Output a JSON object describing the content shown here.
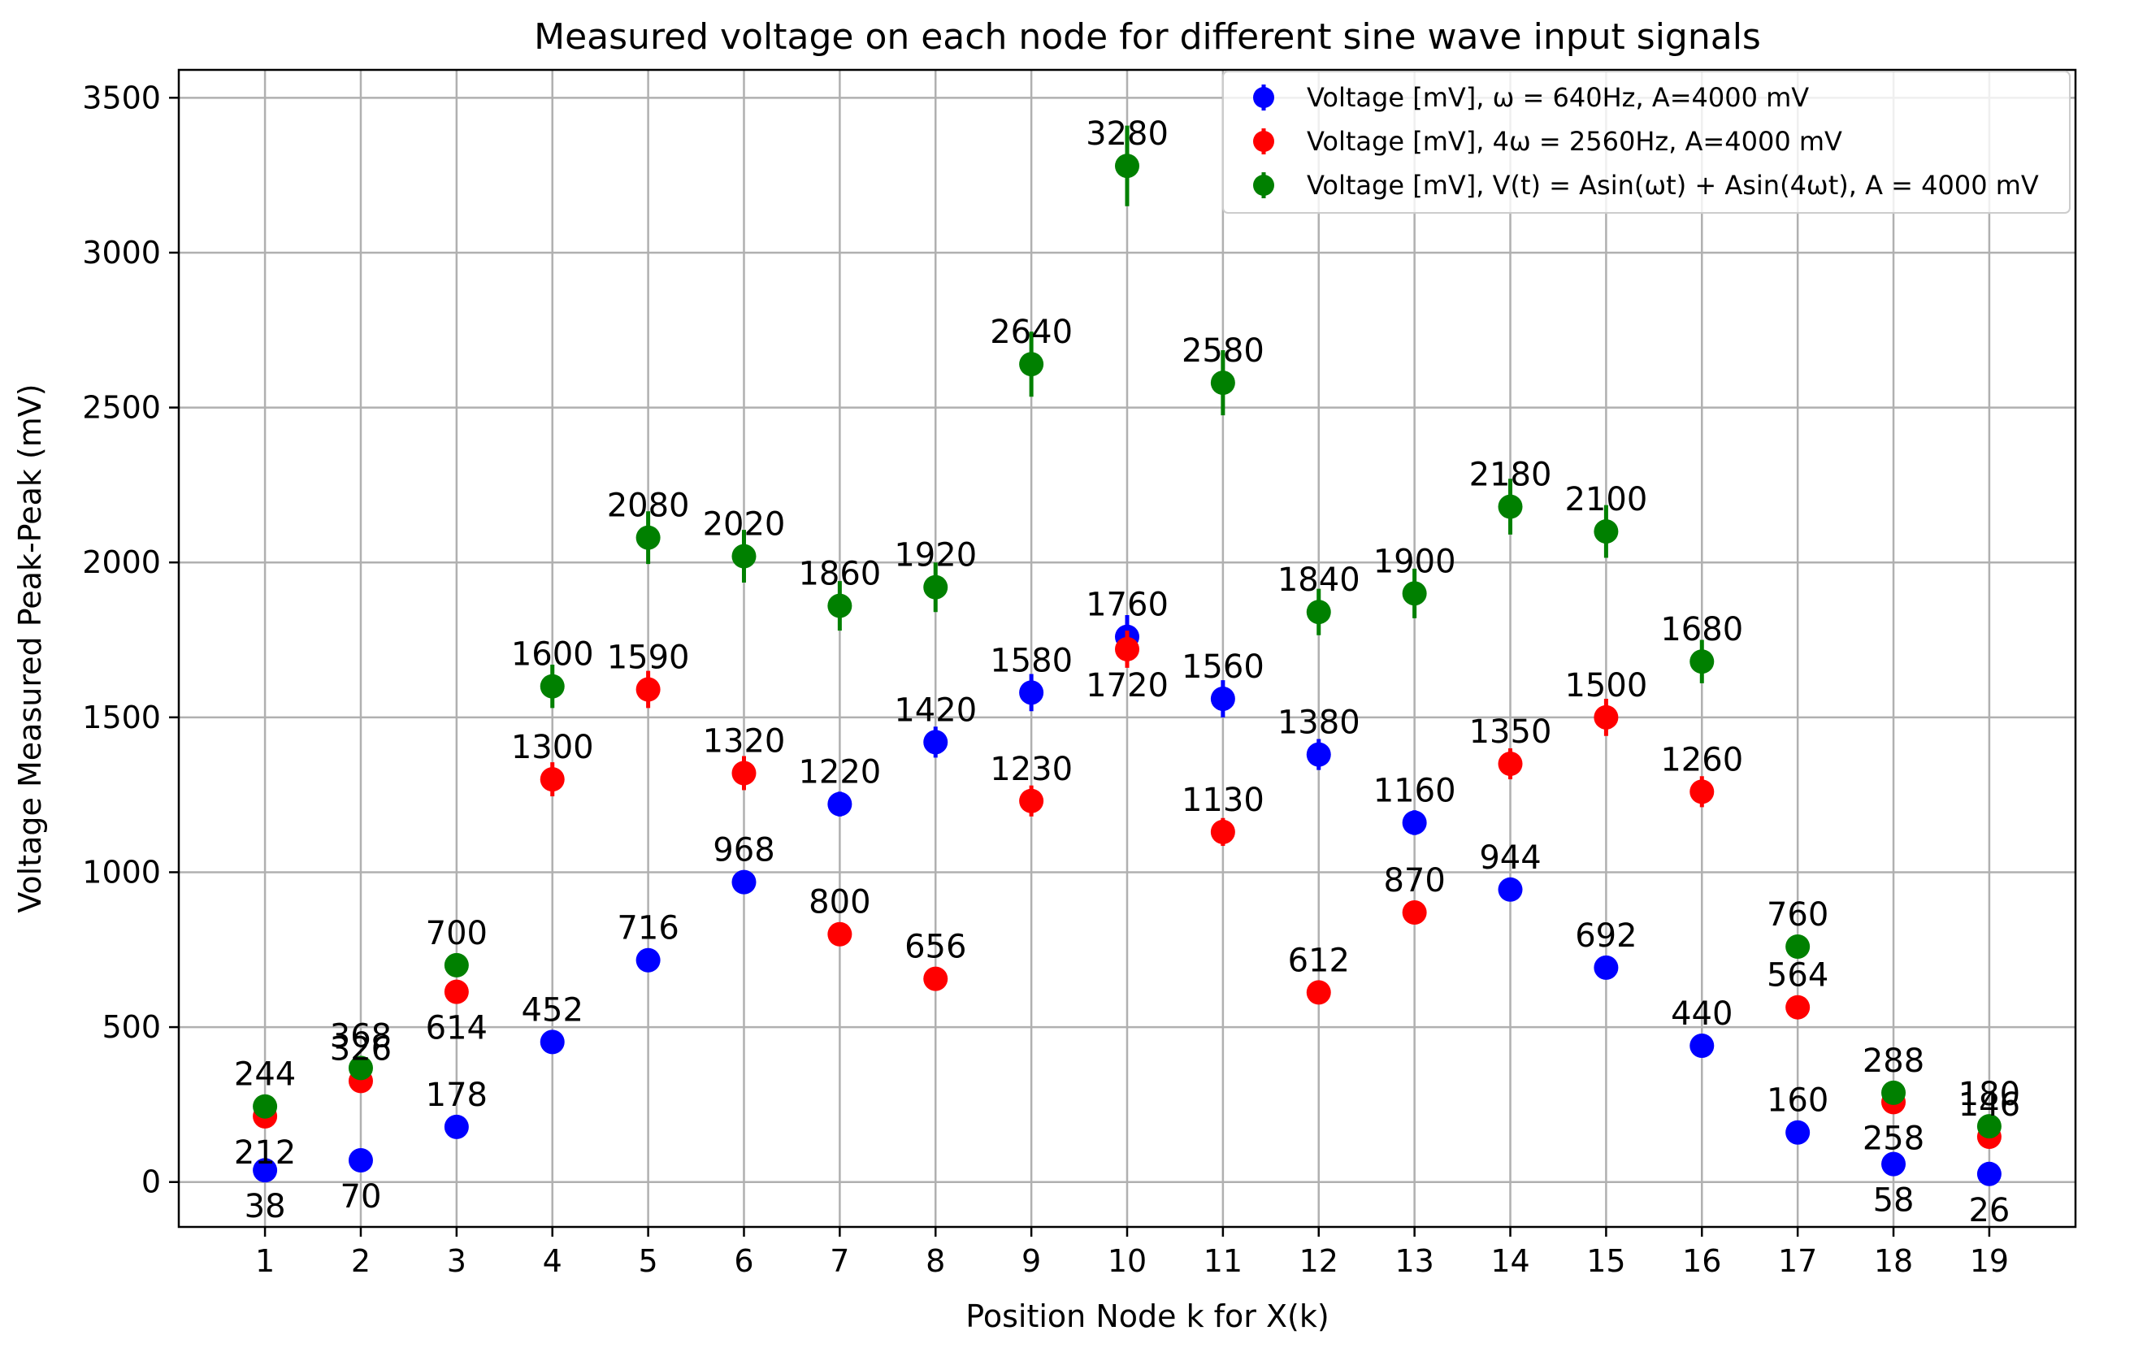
{
  "chart_data": {
    "type": "scatter",
    "title": "Measured voltage on each node for different sine wave input signals",
    "xlabel": "Position Node k for X(k)",
    "ylabel": "Voltage Measured Peak-Peak (mV)",
    "x": [
      1,
      2,
      3,
      4,
      5,
      6,
      7,
      8,
      9,
      10,
      11,
      12,
      13,
      14,
      15,
      16,
      17,
      18,
      19
    ],
    "xticks": [
      "1",
      "2",
      "3",
      "4",
      "5",
      "6",
      "7",
      "8",
      "9",
      "10",
      "11",
      "12",
      "13",
      "14",
      "15",
      "16",
      "17",
      "18",
      "19"
    ],
    "yticks": [
      "0",
      "500",
      "1000",
      "1500",
      "2000",
      "2500",
      "3000",
      "3500"
    ],
    "xlim": [
      0.1,
      19.9
    ],
    "ylim": [
      -145,
      3590
    ],
    "grid": true,
    "legend_position": "top-right",
    "series": [
      {
        "name": "Voltage [mV], ω = 640Hz, A=4000 mV",
        "color": "#0000ff",
        "values": [
          38,
          70,
          178,
          452,
          716,
          968,
          1220,
          1420,
          1580,
          1760,
          1560,
          1380,
          1160,
          944,
          692,
          440,
          160,
          58,
          26
        ],
        "errors": [
          20,
          20,
          20,
          20,
          25,
          25,
          40,
          50,
          60,
          70,
          60,
          50,
          40,
          30,
          25,
          20,
          15,
          15,
          15
        ]
      },
      {
        "name": "Voltage [mV], 4ω = 2560Hz, A=4000 mV",
        "color": "#ff0000",
        "values": [
          212,
          326,
          614,
          1300,
          1590,
          1320,
          800,
          656,
          1230,
          1720,
          1130,
          612,
          870,
          1350,
          1500,
          1260,
          564,
          258,
          146
        ],
        "errors": [
          20,
          25,
          30,
          55,
          60,
          55,
          30,
          25,
          50,
          60,
          45,
          25,
          35,
          50,
          60,
          50,
          25,
          20,
          15
        ]
      },
      {
        "name": "Voltage [mV], V(t) = Asin(ωt) + Asin(4ωt), A = 4000 mV",
        "color": "#008000",
        "values": [
          244,
          368,
          700,
          1600,
          2080,
          2020,
          1860,
          1920,
          2640,
          3280,
          2580,
          1840,
          1900,
          2180,
          2100,
          1680,
          760,
          288,
          180
        ],
        "errors": [
          25,
          30,
          35,
          70,
          85,
          85,
          80,
          80,
          105,
          130,
          105,
          75,
          80,
          90,
          85,
          70,
          35,
          25,
          20
        ]
      }
    ],
    "labels": [
      [
        "38",
        "70",
        "178",
        "452",
        "716",
        "968",
        "1220",
        "1420",
        "1580",
        "1760",
        "1560",
        "1380",
        "1160",
        "944",
        "692",
        "440",
        "160",
        "58",
        "26"
      ],
      [
        "212",
        "326",
        "614",
        "1300",
        "1590",
        "1320",
        "800",
        "656",
        "1230",
        "1720",
        "1130",
        "612",
        "870",
        "1350",
        "1500",
        "1260",
        "564",
        "258",
        "146"
      ],
      [
        "244",
        "368",
        "700",
        "1600",
        "2080",
        "2020",
        "1860",
        "1920",
        "2640",
        "3280",
        "2580",
        "1840",
        "1900",
        "2180",
        "2100",
        "1680",
        "760",
        "288",
        "180"
      ]
    ],
    "label_offsets_note": "text placement above (+) or below (-) marker in data-space sense",
    "label_below": [
      [
        true,
        true,
        false,
        false,
        false,
        false,
        false,
        false,
        false,
        false,
        false,
        false,
        false,
        false,
        false,
        false,
        false,
        true,
        true
      ],
      [
        true,
        false,
        true,
        false,
        false,
        false,
        false,
        false,
        false,
        true,
        false,
        false,
        false,
        false,
        false,
        false,
        false,
        true,
        false
      ],
      [
        false,
        false,
        false,
        false,
        false,
        false,
        false,
        false,
        false,
        false,
        false,
        false,
        false,
        false,
        false,
        false,
        false,
        false,
        false
      ]
    ]
  }
}
